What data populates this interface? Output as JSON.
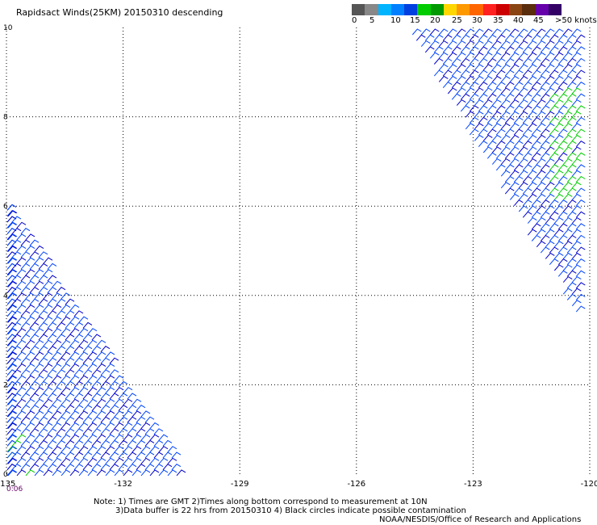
{
  "title": "Rapidsact Winds(25KM) 20150310 descending",
  "color_scale": {
    "colors": [
      "#555555",
      "#888888",
      "#00b4ff",
      "#0080ff",
      "#0040e0",
      "#00cc00",
      "#009900",
      "#ffd700",
      "#ff9900",
      "#ff6600",
      "#ff2020",
      "#cc0000",
      "#8b4513",
      "#5a2d0c",
      "#6600aa",
      "#330066"
    ],
    "labels": [
      "0",
      "5",
      "10",
      "15",
      "20",
      "25",
      "30",
      "35",
      "40",
      "45",
      ">50 knots"
    ]
  },
  "chart_data": {
    "type": "wind-barb map",
    "title": "Rapidsact Winds(25KM) 20150310 descending",
    "xlim": [
      -135,
      -120
    ],
    "ylim": [
      0,
      10
    ],
    "x_ticks": [
      "-135",
      "-132",
      "-129",
      "-126",
      "-123",
      "-120"
    ],
    "y_ticks": [
      "0",
      "2",
      "4",
      "6",
      "8",
      "10"
    ],
    "grid": true,
    "time_labels": [
      {
        "lon": -135,
        "text": "0:06"
      }
    ],
    "swaths": [
      {
        "name": "west",
        "wind_speed_knots": "10-20",
        "dominant_color": "blue",
        "polygon_lonlat": [
          [
            -135,
            6.2
          ],
          [
            -135,
            0
          ],
          [
            -130.3,
            0
          ]
        ]
      },
      {
        "name": "east",
        "wind_speed_knots": "10-25",
        "dominant_color": "blue/green",
        "polygon_lonlat": [
          [
            -124.6,
            10
          ],
          [
            -120.2,
            10
          ],
          [
            -120.2,
            3.5
          ]
        ]
      }
    ]
  },
  "notes": [
    "Note: 1) Times are GMT 2)Times along bottom correspond to measurement at 10N",
    "3)Data buffer is 22 hrs from 20150310 4) Black circles indicate possible contamination",
    "NOAA/NESDIS/Office of Research and Applications"
  ]
}
